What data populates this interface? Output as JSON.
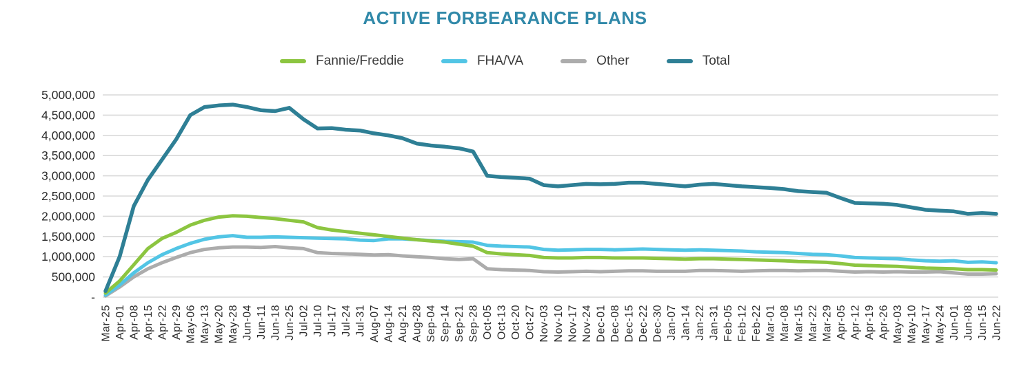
{
  "page": {
    "background": "#ffffff"
  },
  "chart_data": {
    "type": "line",
    "title": "ACTIVE FORBEARANCE PLANS",
    "title_color": "#3189A9",
    "legend_position": "top",
    "grid": true,
    "gridline_color": "#d9d9d9",
    "axis_text_color": "#2b2b2b",
    "ylim": [
      0,
      5000000
    ],
    "y_tick_interval": 500000,
    "y_tick_labels": [
      "-",
      "500,000",
      "1,000,000",
      "1,500,000",
      "2,000,000",
      "2,500,000",
      "3,000,000",
      "3,500,000",
      "4,000,000",
      "4,500,000",
      "5,000,000"
    ],
    "x_tick_rotation": -90,
    "categories": [
      "Mar-25",
      "Apr-01",
      "Apr-08",
      "Apr-15",
      "Apr-22",
      "Apr-29",
      "May-06",
      "May-13",
      "May-20",
      "May-28",
      "Jun-04",
      "Jun-11",
      "Jun-18",
      "Jun-25",
      "Jul-02",
      "Jul-10",
      "Jul-17",
      "Jul-24",
      "Jul-31",
      "Aug-07",
      "Aug-14",
      "Aug-21",
      "Aug-28",
      "Sep-04",
      "Sep-14",
      "Sep-21",
      "Sep-28",
      "Oct-05",
      "Oct-13",
      "Oct-20",
      "Oct-27",
      "Nov-03",
      "Nov-10",
      "Nov-17",
      "Nov-24",
      "Dec-01",
      "Dec-08",
      "Dec-15",
      "Dec-22",
      "Dec-30",
      "Jan-07",
      "Jan-14",
      "Jan-22",
      "Jan-31",
      "Feb-05",
      "Feb-12",
      "Feb-22",
      "Mar-01",
      "Mar-08",
      "Mar-15",
      "Mar-22",
      "Mar-29",
      "Apr-05",
      "Apr-12",
      "Apr-19",
      "Apr-26",
      "May-03",
      "May-10",
      "May-17",
      "May-24",
      "Jun-01",
      "Jun-08",
      "Jun-15",
      "Jun-22"
    ],
    "series": [
      {
        "name": "Fannie/Freddie",
        "color": "#8CC540",
        "values": [
          100000,
          400000,
          800000,
          1200000,
          1450000,
          1600000,
          1780000,
          1900000,
          1980000,
          2010000,
          2000000,
          1970000,
          1940000,
          1900000,
          1860000,
          1720000,
          1660000,
          1620000,
          1580000,
          1540000,
          1500000,
          1460000,
          1420000,
          1390000,
          1360000,
          1310000,
          1260000,
          1100000,
          1070000,
          1050000,
          1030000,
          980000,
          970000,
          970000,
          980000,
          980000,
          970000,
          970000,
          970000,
          960000,
          950000,
          940000,
          950000,
          950000,
          940000,
          930000,
          920000,
          910000,
          900000,
          880000,
          870000,
          860000,
          830000,
          790000,
          780000,
          770000,
          760000,
          740000,
          720000,
          710000,
          700000,
          680000,
          680000,
          670000
        ]
      },
      {
        "name": "FHA/VA",
        "color": "#52C5E5",
        "values": [
          50000,
          300000,
          600000,
          850000,
          1050000,
          1200000,
          1330000,
          1430000,
          1490000,
          1520000,
          1480000,
          1480000,
          1490000,
          1480000,
          1470000,
          1460000,
          1450000,
          1440000,
          1410000,
          1400000,
          1440000,
          1440000,
          1420000,
          1400000,
          1380000,
          1370000,
          1360000,
          1280000,
          1260000,
          1250000,
          1240000,
          1180000,
          1160000,
          1170000,
          1180000,
          1180000,
          1170000,
          1180000,
          1190000,
          1180000,
          1170000,
          1160000,
          1170000,
          1160000,
          1150000,
          1140000,
          1120000,
          1110000,
          1100000,
          1080000,
          1060000,
          1050000,
          1020000,
          980000,
          970000,
          960000,
          950000,
          920000,
          900000,
          890000,
          900000,
          860000,
          870000,
          850000
        ]
      },
      {
        "name": "Other",
        "color": "#ACACAC",
        "values": [
          30000,
          250000,
          500000,
          700000,
          850000,
          980000,
          1100000,
          1180000,
          1220000,
          1240000,
          1240000,
          1230000,
          1250000,
          1220000,
          1200000,
          1100000,
          1080000,
          1070000,
          1060000,
          1040000,
          1050000,
          1020000,
          1000000,
          980000,
          950000,
          930000,
          950000,
          700000,
          680000,
          670000,
          660000,
          630000,
          620000,
          630000,
          640000,
          630000,
          640000,
          650000,
          650000,
          640000,
          640000,
          640000,
          660000,
          660000,
          650000,
          640000,
          650000,
          660000,
          660000,
          650000,
          660000,
          660000,
          640000,
          620000,
          630000,
          620000,
          630000,
          620000,
          620000,
          630000,
          600000,
          570000,
          570000,
          580000
        ]
      },
      {
        "name": "Total",
        "color": "#2E7F95",
        "values": [
          150000,
          1000000,
          2250000,
          2900000,
          3400000,
          3900000,
          4500000,
          4700000,
          4740000,
          4760000,
          4700000,
          4620000,
          4600000,
          4680000,
          4400000,
          4170000,
          4180000,
          4140000,
          4120000,
          4050000,
          4000000,
          3930000,
          3800000,
          3750000,
          3720000,
          3680000,
          3600000,
          3000000,
          2970000,
          2950000,
          2930000,
          2770000,
          2740000,
          2770000,
          2800000,
          2790000,
          2800000,
          2830000,
          2830000,
          2800000,
          2770000,
          2740000,
          2780000,
          2800000,
          2770000,
          2740000,
          2720000,
          2700000,
          2670000,
          2620000,
          2600000,
          2580000,
          2450000,
          2330000,
          2320000,
          2310000,
          2280000,
          2220000,
          2160000,
          2140000,
          2120000,
          2060000,
          2080000,
          2060000
        ]
      }
    ]
  }
}
